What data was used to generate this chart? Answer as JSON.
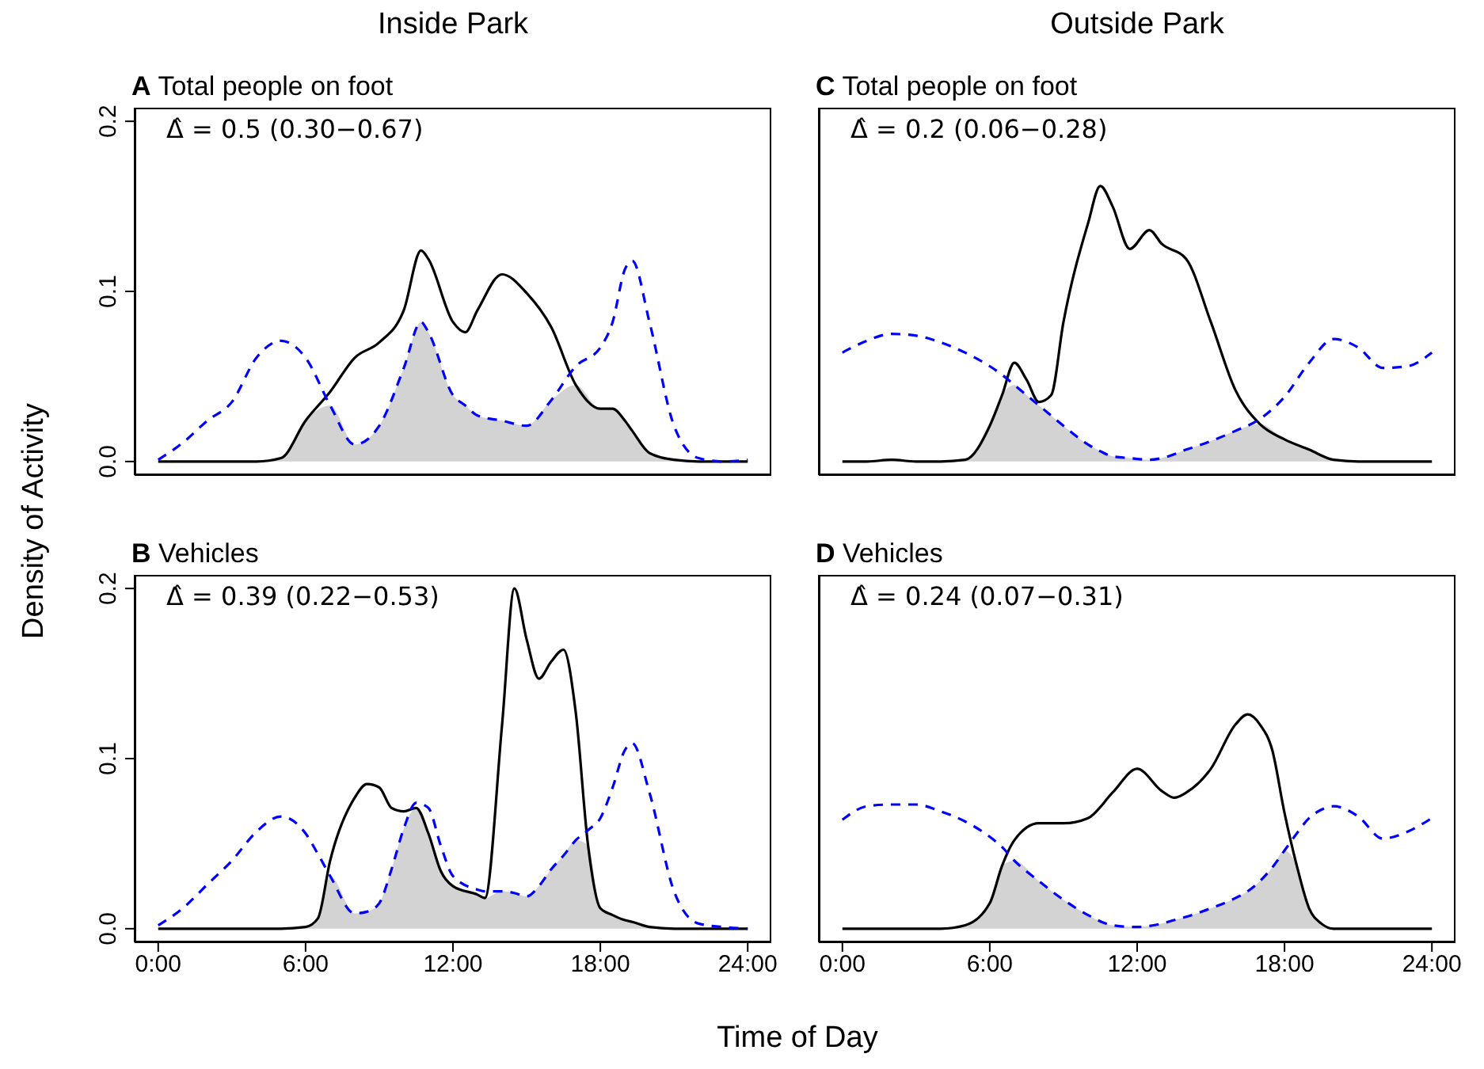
{
  "chart_data": [
    {
      "type": "line",
      "title": "Inside Park",
      "subtitle": "A Total people on foot",
      "ylabel": "Density of Activity",
      "annotations": [
        "Δ̂ = 0.5 (0.30−0.67)"
      ],
      "tick_labels": "y",
      "xlim": [
        -0.96,
        24.96
      ],
      "ylim": [
        -0.008,
        0.208
      ],
      "xticks": [
        {
          "value": 0,
          "label": null
        },
        {
          "value": 6,
          "label": null
        },
        {
          "value": 12,
          "label": null
        },
        {
          "value": 18,
          "label": null
        },
        {
          "value": 24,
          "label": null
        }
      ],
      "yticks": [
        {
          "value": 0,
          "label": "0.0"
        },
        {
          "value": 0.1,
          "label": "0.1"
        },
        {
          "value": 0.2,
          "label": "0.2"
        }
      ],
      "x": [
        0,
        1,
        2,
        3,
        4,
        5,
        6,
        7,
        8,
        9,
        10,
        10.7,
        11,
        12,
        12.5,
        13,
        14,
        15,
        16,
        17,
        18,
        18.5,
        19,
        19.3,
        20,
        21,
        22,
        23,
        24
      ],
      "series": [
        {
          "type": "area",
          "color": "#d3d3d3",
          "values": [
            0,
            0,
            0,
            0,
            0,
            0.002,
            0.024,
            0.033,
            0.01,
            0.021,
            0.055,
            0.082,
            0.076,
            0.039,
            0.033,
            0.027,
            0.024,
            0.021,
            0.036,
            0.045,
            0.031,
            0.031,
            0.024,
            0.018,
            0.005,
            0.001,
            0,
            0,
            0
          ]
        },
        {
          "type": "line",
          "color": "#000000",
          "line_style": "solid",
          "values": [
            0,
            0,
            0,
            0,
            0,
            0.002,
            0.024,
            0.041,
            0.061,
            0.07,
            0.089,
            0.124,
            0.119,
            0.082,
            0.076,
            0.089,
            0.11,
            0.099,
            0.079,
            0.045,
            0.031,
            0.031,
            0.024,
            0.018,
            0.005,
            0.001,
            0,
            0,
            0
          ]
        },
        {
          "type": "line",
          "color": "#0000ff",
          "line_style": "dashed",
          "values": [
            0.001,
            0.011,
            0.024,
            0.035,
            0.061,
            0.071,
            0.061,
            0.033,
            0.01,
            0.021,
            0.055,
            0.082,
            0.076,
            0.039,
            0.033,
            0.027,
            0.024,
            0.021,
            0.036,
            0.056,
            0.067,
            0.082,
            0.113,
            0.118,
            0.082,
            0.021,
            0.002,
            0,
            0.001
          ]
        }
      ]
    },
    {
      "type": "line",
      "title": "Outside Park",
      "subtitle": "C Total people on foot",
      "annotations": [
        "Δ̂ = 0.2 (0.06−0.28)"
      ],
      "tick_labels": false,
      "xlim": [
        -0.96,
        24.96
      ],
      "ylim": [
        -0.008,
        0.208
      ],
      "xticks": [
        {
          "value": 0,
          "label": null
        },
        {
          "value": 6,
          "label": null
        },
        {
          "value": 12,
          "label": null
        },
        {
          "value": 18,
          "label": null
        },
        {
          "value": 24,
          "label": null
        }
      ],
      "yticks": [
        {
          "value": 0,
          "label": null
        },
        {
          "value": 0.1,
          "label": null
        },
        {
          "value": 0.2,
          "label": null
        }
      ],
      "x": [
        0,
        1,
        2,
        3,
        4,
        5,
        6,
        6.5,
        7,
        7.5,
        8,
        8.5,
        9,
        10,
        10.5,
        11,
        11.7,
        12.5,
        13,
        14,
        15,
        16,
        17,
        18,
        19,
        20,
        21,
        22,
        23,
        24
      ],
      "series": [
        {
          "type": "area",
          "color": "#d3d3d3",
          "values": [
            0,
            0,
            0.001,
            0,
            0,
            0.001,
            0.021,
            0.039,
            0.045,
            0.039,
            0.033,
            0.027,
            0.021,
            0.01,
            0.006,
            0.003,
            0.002,
            0.001,
            0.002,
            0.007,
            0.012,
            0.018,
            0.022,
            0.013,
            0.007,
            0.001,
            0,
            0,
            0,
            0
          ]
        },
        {
          "type": "line",
          "color": "#000000",
          "line_style": "solid",
          "values": [
            0,
            0,
            0.001,
            0,
            0,
            0.001,
            0.021,
            0.039,
            0.058,
            0.048,
            0.035,
            0.039,
            0.082,
            0.14,
            0.162,
            0.15,
            0.125,
            0.136,
            0.128,
            0.119,
            0.082,
            0.042,
            0.022,
            0.013,
            0.007,
            0.001,
            0,
            0,
            0,
            0
          ]
        },
        {
          "type": "line",
          "color": "#0000ff",
          "line_style": "dashed",
          "values": [
            0.064,
            0.071,
            0.075,
            0.074,
            0.07,
            0.064,
            0.056,
            0.051,
            0.045,
            0.039,
            0.033,
            0.027,
            0.021,
            0.01,
            0.006,
            0.003,
            0.002,
            0.001,
            0.002,
            0.007,
            0.012,
            0.018,
            0.025,
            0.038,
            0.058,
            0.072,
            0.067,
            0.055,
            0.056,
            0.064
          ]
        }
      ]
    },
    {
      "type": "line",
      "subtitle": "B Vehicles",
      "xlabel": "Time of Day",
      "annotations": [
        "Δ̂ = 0.39 (0.22−0.53)"
      ],
      "xlim": [
        -0.96,
        24.96
      ],
      "ylim": [
        -0.008,
        0.208
      ],
      "xticks": [
        {
          "value": 0,
          "label": "0:00"
        },
        {
          "value": 6,
          "label": "6:00"
        },
        {
          "value": 12,
          "label": "12:00"
        },
        {
          "value": 18,
          "label": "18:00"
        },
        {
          "value": 24,
          "label": "24:00"
        }
      ],
      "yticks": [
        {
          "value": 0,
          "label": "0.0"
        },
        {
          "value": 0.1,
          "label": "0.1"
        },
        {
          "value": 0.2,
          "label": "0.2"
        }
      ],
      "x": [
        0,
        1,
        2,
        3,
        4,
        5,
        6,
        6.5,
        7,
        8,
        8.5,
        9,
        9.5,
        10,
        10.5,
        11,
        11.5,
        12,
        13,
        13.3,
        14,
        14.5,
        15,
        15.5,
        16,
        16.5,
        17,
        17.5,
        18,
        18.5,
        19,
        19.3,
        20,
        21,
        22,
        23,
        24
      ],
      "series": [
        {
          "type": "area",
          "color": "#d3d3d3",
          "values": [
            0,
            0,
            0,
            0,
            0,
            0,
            0.001,
            0.006,
            0.031,
            0.009,
            0.01,
            0.015,
            0.035,
            0.059,
            0.071,
            0.056,
            0.034,
            0.025,
            0.02,
            0.018,
            0.022,
            0.021,
            0.019,
            0.025,
            0.035,
            0.043,
            0.052,
            0.049,
            0.012,
            0.008,
            0.005,
            0.004,
            0.001,
            0,
            0,
            0,
            0
          ]
        },
        {
          "type": "line",
          "color": "#000000",
          "line_style": "solid",
          "values": [
            0,
            0,
            0,
            0,
            0,
            0,
            0.001,
            0.006,
            0.04,
            0.077,
            0.085,
            0.083,
            0.071,
            0.069,
            0.071,
            0.056,
            0.034,
            0.025,
            0.02,
            0.018,
            0.12,
            0.2,
            0.17,
            0.147,
            0.157,
            0.164,
            0.127,
            0.049,
            0.012,
            0.008,
            0.005,
            0.004,
            0.001,
            0,
            0,
            0,
            0
          ]
        },
        {
          "type": "line",
          "color": "#0000ff",
          "line_style": "dashed",
          "values": [
            0.002,
            0.012,
            0.026,
            0.04,
            0.057,
            0.066,
            0.056,
            0.044,
            0.031,
            0.009,
            0.01,
            0.015,
            0.035,
            0.059,
            0.074,
            0.071,
            0.049,
            0.031,
            0.023,
            0.022,
            0.022,
            0.021,
            0.019,
            0.025,
            0.035,
            0.043,
            0.052,
            0.058,
            0.065,
            0.083,
            0.105,
            0.109,
            0.08,
            0.022,
            0.003,
            0.001,
            0
          ]
        }
      ]
    },
    {
      "type": "line",
      "subtitle": "D Vehicles",
      "annotations": [
        "Δ̂ = 0.24 (0.07−0.31)"
      ],
      "tick_labels": "x",
      "xlim": [
        -0.96,
        24.96
      ],
      "ylim": [
        -0.008,
        0.208
      ],
      "xticks": [
        {
          "value": 0,
          "label": "0:00"
        },
        {
          "value": 6,
          "label": "6:00"
        },
        {
          "value": 12,
          "label": "12:00"
        },
        {
          "value": 18,
          "label": "18:00"
        },
        {
          "value": 24,
          "label": "24:00"
        }
      ],
      "yticks": [
        {
          "value": 0,
          "label": null
        },
        {
          "value": 0.1,
          "label": null
        },
        {
          "value": 0.2,
          "label": null
        }
      ],
      "x": [
        0,
        1,
        2,
        3,
        4,
        5,
        6,
        6.5,
        7,
        8,
        9,
        10,
        11,
        12,
        13,
        13.5,
        14,
        15,
        16,
        16.5,
        17,
        17.5,
        18,
        18.5,
        19,
        19.5,
        20,
        21,
        22,
        23,
        24
      ],
      "series": [
        {
          "type": "area",
          "color": "#d3d3d3",
          "values": [
            0,
            0,
            0,
            0,
            0,
            0.002,
            0.015,
            0.037,
            0.04,
            0.028,
            0.017,
            0.008,
            0.002,
            0.001,
            0.003,
            0.005,
            0.007,
            0.012,
            0.018,
            0.022,
            0.028,
            0.036,
            0.046,
            0.037,
            0.012,
            0.003,
            0,
            0,
            0,
            0,
            0
          ]
        },
        {
          "type": "line",
          "color": "#000000",
          "line_style": "solid",
          "values": [
            0,
            0,
            0,
            0,
            0,
            0.002,
            0.015,
            0.037,
            0.052,
            0.062,
            0.062,
            0.065,
            0.08,
            0.094,
            0.081,
            0.077,
            0.08,
            0.094,
            0.12,
            0.126,
            0.12,
            0.105,
            0.068,
            0.037,
            0.012,
            0.003,
            0,
            0,
            0,
            0,
            0
          ]
        },
        {
          "type": "line",
          "color": "#0000ff",
          "line_style": "dashed",
          "values": [
            0.064,
            0.072,
            0.073,
            0.073,
            0.069,
            0.063,
            0.054,
            0.048,
            0.04,
            0.028,
            0.017,
            0.008,
            0.002,
            0.001,
            0.003,
            0.005,
            0.007,
            0.012,
            0.018,
            0.022,
            0.028,
            0.036,
            0.046,
            0.056,
            0.065,
            0.07,
            0.072,
            0.066,
            0.053,
            0.057,
            0.065
          ]
        }
      ]
    }
  ]
}
